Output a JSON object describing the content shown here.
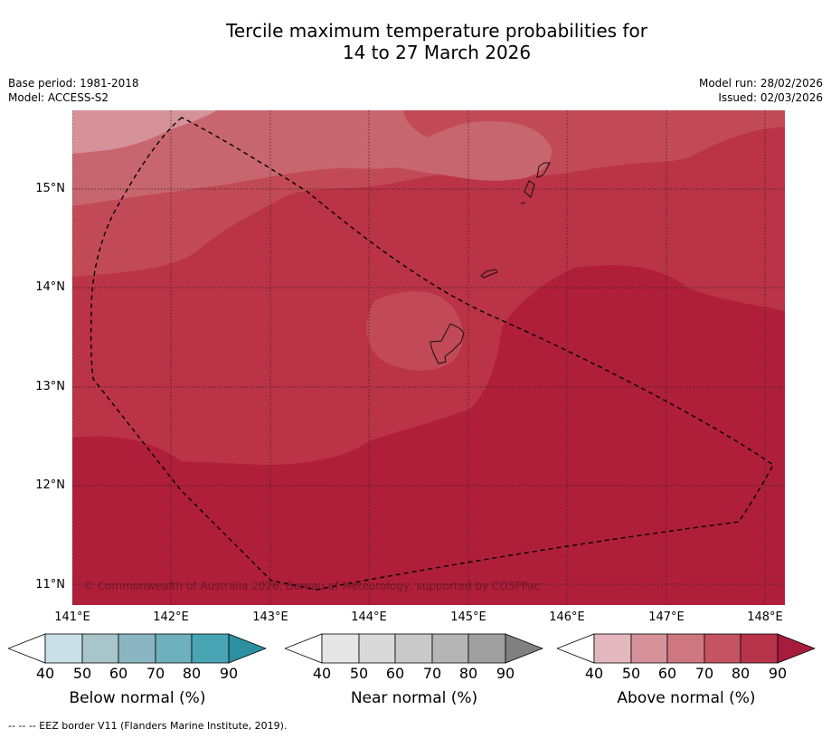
{
  "title": {
    "line1": "Tercile maximum temperature probabilities for",
    "line2": "14 to 27 March 2026"
  },
  "meta": {
    "base_period": "Base period: 1981-2018",
    "model": "Model: ACCESS-S2",
    "model_run": "Model run: 28/02/2026",
    "issued": "Issued: 02/03/2026"
  },
  "map": {
    "latitude_labels": [
      "15°N",
      "14°N",
      "13°N",
      "12°N",
      "11°N"
    ],
    "longitude_labels": [
      "141°E",
      "142°E",
      "143°E",
      "144°E",
      "145°E",
      "146°E",
      "147°E",
      "148°E"
    ],
    "copyright": "© Commonwealth of Australia 2026, Bureau of Meteorology, supported by COSPPac",
    "colors": {
      "above_60_70": "#d5929a",
      "above_70_80": "#c8666f",
      "above_80_90_light": "#c24a56",
      "above_80_90": "#ba3347",
      "above_90": "#b01f3a",
      "grid": "#222222",
      "eez_border": "#000000"
    }
  },
  "colorbars": {
    "below": {
      "label": "Below normal (%)",
      "ticks": [
        "40",
        "50",
        "60",
        "70",
        "80",
        "90"
      ],
      "colors": [
        "#ffffff",
        "#c9e0e6",
        "#a8c5c9",
        "#8ab6c1",
        "#6fb0be",
        "#49a5b4",
        "#2c90a0"
      ]
    },
    "near": {
      "label": "Near normal (%)",
      "ticks": [
        "40",
        "50",
        "60",
        "70",
        "80",
        "90"
      ],
      "colors": [
        "#ffffff",
        "#e6e6e6",
        "#d9d9d9",
        "#c9c9c9",
        "#b5b5b5",
        "#a0a0a0",
        "#808080"
      ]
    },
    "above": {
      "label": "Above normal (%)",
      "ticks": [
        "40",
        "50",
        "60",
        "70",
        "80",
        "90"
      ],
      "colors": [
        "#ffffff",
        "#e3b7bd",
        "#d5929a",
        "#ce7780",
        "#c45462",
        "#b8344a",
        "#a71c3d"
      ]
    }
  },
  "footer": {
    "eez_note": "--  --  -- EEZ border V11 (Flanders Marine Institute, 2019)."
  }
}
